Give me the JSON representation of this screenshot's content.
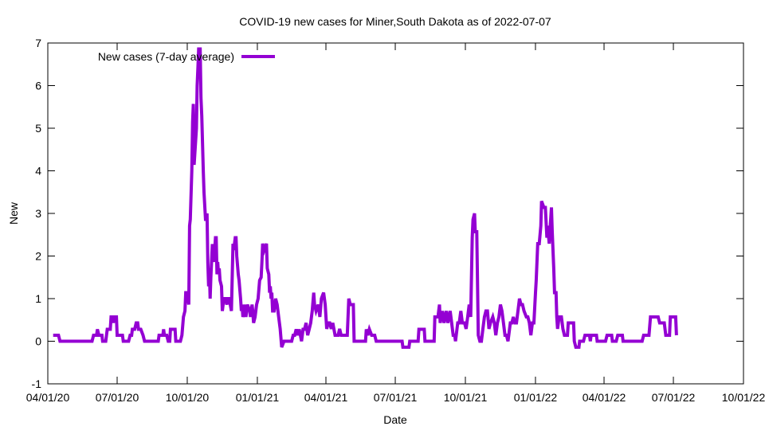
{
  "chart_data": {
    "type": "line",
    "title": "COVID-19 new cases for Miner,South Dakota as of 2022-07-07",
    "xlabel": "Date",
    "ylabel": "New",
    "x_unit": "days since 2020-04-01",
    "xlim": [
      0,
      913
    ],
    "ylim": [
      -1,
      7
    ],
    "yticks": [
      -1,
      0,
      1,
      2,
      3,
      4,
      5,
      6,
      7
    ],
    "xticks": [
      {
        "day": 0,
        "label": "04/01/20"
      },
      {
        "day": 91,
        "label": "07/01/20"
      },
      {
        "day": 183,
        "label": "10/01/20"
      },
      {
        "day": 275,
        "label": "01/01/21"
      },
      {
        "day": 365,
        "label": "04/01/21"
      },
      {
        "day": 456,
        "label": "07/01/21"
      },
      {
        "day": 548,
        "label": "10/01/21"
      },
      {
        "day": 640,
        "label": "01/01/22"
      },
      {
        "day": 730,
        "label": "04/01/22"
      },
      {
        "day": 821,
        "label": "07/01/22"
      },
      {
        "day": 913,
        "label": "10/01/22"
      }
    ],
    "grid": false,
    "legend_position": "top-left",
    "series": [
      {
        "name": "New cases (7-day average)",
        "color": "#9400d3",
        "points": [
          [
            7,
            0.14
          ],
          [
            14,
            0.14
          ],
          [
            16,
            0
          ],
          [
            58,
            0
          ],
          [
            60,
            0.14
          ],
          [
            64,
            0.14
          ],
          [
            65,
            0.28
          ],
          [
            67,
            0.14
          ],
          [
            71,
            0.14
          ],
          [
            72,
            0
          ],
          [
            76,
            0
          ],
          [
            78,
            0.28
          ],
          [
            82,
            0.28
          ],
          [
            83,
            0.57
          ],
          [
            85,
            0.57
          ],
          [
            86,
            0.43
          ],
          [
            87,
            0.57
          ],
          [
            90,
            0.57
          ],
          [
            91,
            0.14
          ],
          [
            98,
            0.14
          ],
          [
            99,
            0
          ],
          [
            106,
            0
          ],
          [
            108,
            0.14
          ],
          [
            110,
            0.14
          ],
          [
            111,
            0.28
          ],
          [
            114,
            0.28
          ],
          [
            116,
            0.43
          ],
          [
            118,
            0.43
          ],
          [
            119,
            0.28
          ],
          [
            122,
            0.28
          ],
          [
            125,
            0.14
          ],
          [
            127,
            0
          ],
          [
            145,
            0
          ],
          [
            146,
            0.14
          ],
          [
            151,
            0.14
          ],
          [
            152,
            0.28
          ],
          [
            153,
            0.14
          ],
          [
            156,
            0.14
          ],
          [
            158,
            0
          ],
          [
            160,
            0
          ],
          [
            161,
            0.28
          ],
          [
            167,
            0.28
          ],
          [
            168,
            0
          ],
          [
            174,
            0
          ],
          [
            176,
            0.14
          ],
          [
            178,
            0.57
          ],
          [
            180,
            0.71
          ],
          [
            181,
            1.14
          ],
          [
            183,
            1.14
          ],
          [
            185,
            0.86
          ],
          [
            186,
            2.71
          ],
          [
            187,
            2.86
          ],
          [
            189,
            4.0
          ],
          [
            190,
            5.14
          ],
          [
            191,
            5.57
          ],
          [
            192,
            4.14
          ],
          [
            195,
            5.0
          ],
          [
            196,
            6.0
          ],
          [
            197,
            6.43
          ],
          [
            198,
            6.86
          ],
          [
            200,
            6.86
          ],
          [
            201,
            5.71
          ],
          [
            202,
            5.29
          ],
          [
            204,
            4.0
          ],
          [
            205,
            3.5
          ],
          [
            207,
            2.86
          ],
          [
            208,
            2.86
          ],
          [
            209,
            3.0
          ],
          [
            210,
            1.86
          ],
          [
            211,
            1.29
          ],
          [
            212,
            1.71
          ],
          [
            213,
            1.0
          ],
          [
            214,
            1.5
          ],
          [
            216,
            2.28
          ],
          [
            218,
            1.86
          ],
          [
            220,
            2.43
          ],
          [
            221,
            2.43
          ],
          [
            222,
            1.57
          ],
          [
            223,
            1.86
          ],
          [
            224,
            1.57
          ],
          [
            225,
            1.71
          ],
          [
            226,
            1.43
          ],
          [
            228,
            1.29
          ],
          [
            229,
            0.71
          ],
          [
            231,
            1.0
          ],
          [
            233,
            1.0
          ],
          [
            235,
            0.86
          ],
          [
            236,
            1.0
          ],
          [
            238,
            1.0
          ],
          [
            241,
            0.71
          ],
          [
            243,
            2.29
          ],
          [
            244,
            2.14
          ],
          [
            246,
            2.43
          ],
          [
            247,
            2.43
          ],
          [
            248,
            2.0
          ],
          [
            250,
            1.57
          ],
          [
            251,
            1.43
          ],
          [
            253,
            1.0
          ],
          [
            254,
            0.71
          ],
          [
            255,
            0.86
          ],
          [
            256,
            0.57
          ],
          [
            258,
            0.71
          ],
          [
            259,
            0.86
          ],
          [
            260,
            0.57
          ],
          [
            262,
            0.86
          ],
          [
            265,
            0.71
          ],
          [
            266,
            0.57
          ],
          [
            268,
            0.86
          ],
          [
            269,
            0.71
          ],
          [
            270,
            0.43
          ],
          [
            272,
            0.57
          ],
          [
            274,
            0.86
          ],
          [
            276,
            1.0
          ],
          [
            278,
            1.43
          ],
          [
            280,
            1.5
          ],
          [
            281,
            1.86
          ],
          [
            282,
            2.29
          ],
          [
            284,
            2.14
          ],
          [
            287,
            2.29
          ],
          [
            288,
            1.71
          ],
          [
            290,
            1.57
          ],
          [
            291,
            1.14
          ],
          [
            292,
            1.29
          ],
          [
            293,
            1.0
          ],
          [
            294,
            1.14
          ],
          [
            295,
            0.71
          ],
          [
            297,
            0.71
          ],
          [
            299,
            1.0
          ],
          [
            301,
            0.86
          ],
          [
            303,
            0.57
          ],
          [
            305,
            0.29
          ],
          [
            307,
            -0.14
          ],
          [
            310,
            0
          ],
          [
            320,
            0
          ],
          [
            322,
            0.14
          ],
          [
            324,
            0.14
          ],
          [
            326,
            0.28
          ],
          [
            328,
            0.14
          ],
          [
            330,
            0.28
          ],
          [
            333,
            0
          ],
          [
            335,
            0.28
          ],
          [
            337,
            0.28
          ],
          [
            339,
            0.43
          ],
          [
            341,
            0.14
          ],
          [
            343,
            0.28
          ],
          [
            345,
            0.43
          ],
          [
            347,
            0.71
          ],
          [
            349,
            1.14
          ],
          [
            350,
            0.86
          ],
          [
            352,
            0.71
          ],
          [
            355,
            0.86
          ],
          [
            357,
            0.57
          ],
          [
            359,
            1.0
          ],
          [
            362,
            1.14
          ],
          [
            364,
            0.86
          ],
          [
            366,
            0.29
          ],
          [
            368,
            0.43
          ],
          [
            370,
            0.43
          ],
          [
            372,
            0.29
          ],
          [
            374,
            0.43
          ],
          [
            377,
            0.14
          ],
          [
            379,
            0.14
          ],
          [
            381,
            0.14
          ],
          [
            383,
            0.29
          ],
          [
            385,
            0.14
          ],
          [
            387,
            0.14
          ],
          [
            393,
            0.14
          ],
          [
            395,
            1.0
          ],
          [
            397,
            0.86
          ],
          [
            401,
            0.86
          ],
          [
            402,
            0
          ],
          [
            417,
            0
          ],
          [
            418,
            0.28
          ],
          [
            420,
            0.14
          ],
          [
            422,
            0.28
          ],
          [
            425,
            0.14
          ],
          [
            429,
            0.14
          ],
          [
            431,
            0
          ],
          [
            465,
            0
          ],
          [
            466,
            -0.14
          ],
          [
            474,
            -0.14
          ],
          [
            475,
            0
          ],
          [
            486,
            0
          ],
          [
            487,
            0.28
          ],
          [
            494,
            0.28
          ],
          [
            495,
            0
          ],
          [
            507,
            0
          ],
          [
            508,
            0.57
          ],
          [
            512,
            0.57
          ],
          [
            514,
            0.86
          ],
          [
            515,
            0.43
          ],
          [
            518,
            0.71
          ],
          [
            520,
            0.43
          ],
          [
            523,
            0.71
          ],
          [
            525,
            0.43
          ],
          [
            528,
            0.71
          ],
          [
            530,
            0.43
          ],
          [
            532,
            0.14
          ],
          [
            534,
            0.14
          ],
          [
            535,
            0
          ],
          [
            538,
            0.43
          ],
          [
            540,
            0.43
          ],
          [
            542,
            0.71
          ],
          [
            544,
            0.43
          ],
          [
            547,
            0.43
          ],
          [
            549,
            0.29
          ],
          [
            551,
            0.57
          ],
          [
            553,
            0.86
          ],
          [
            555,
            0.57
          ],
          [
            557,
            2.43
          ],
          [
            558,
            2.86
          ],
          [
            560,
            3.0
          ],
          [
            561,
            2.57
          ],
          [
            563,
            2.57
          ],
          [
            565,
            0.14
          ],
          [
            567,
            0
          ],
          [
            569,
            0
          ],
          [
            571,
            0.29
          ],
          [
            573,
            0.57
          ],
          [
            575,
            0.71
          ],
          [
            577,
            0.71
          ],
          [
            579,
            0.29
          ],
          [
            581,
            0.43
          ],
          [
            584,
            0.57
          ],
          [
            586,
            0.43
          ],
          [
            588,
            0.14
          ],
          [
            590,
            0.43
          ],
          [
            592,
            0.57
          ],
          [
            594,
            0.86
          ],
          [
            596,
            0.71
          ],
          [
            598,
            0.43
          ],
          [
            600,
            0.14
          ],
          [
            602,
            0.14
          ],
          [
            604,
            0
          ],
          [
            607,
            0.43
          ],
          [
            609,
            0.43
          ],
          [
            611,
            0.57
          ],
          [
            613,
            0.43
          ],
          [
            615,
            0.43
          ],
          [
            617,
            0.71
          ],
          [
            619,
            1.0
          ],
          [
            621,
            0.86
          ],
          [
            623,
            0.86
          ],
          [
            625,
            0.71
          ],
          [
            628,
            0.57
          ],
          [
            630,
            0.57
          ],
          [
            632,
            0.43
          ],
          [
            634,
            0.14
          ],
          [
            636,
            0.43
          ],
          [
            638,
            0.43
          ],
          [
            640,
            1.14
          ],
          [
            641,
            1.43
          ],
          [
            643,
            2.29
          ],
          [
            645,
            2.29
          ],
          [
            647,
            2.71
          ],
          [
            648,
            3.29
          ],
          [
            651,
            3.14
          ],
          [
            653,
            3.14
          ],
          [
            655,
            2.43
          ],
          [
            656,
            2.71
          ],
          [
            658,
            2.29
          ],
          [
            659,
            2.57
          ],
          [
            661,
            3.14
          ],
          [
            662,
            2.57
          ],
          [
            664,
            1.71
          ],
          [
            665,
            1.14
          ],
          [
            667,
            1.14
          ],
          [
            668,
            0.57
          ],
          [
            669,
            0.29
          ],
          [
            671,
            0.57
          ],
          [
            674,
            0.57
          ],
          [
            676,
            0.29
          ],
          [
            678,
            0.14
          ],
          [
            682,
            0.14
          ],
          [
            683,
            0.43
          ],
          [
            690,
            0.43
          ],
          [
            691,
            0
          ],
          [
            693,
            -0.14
          ],
          [
            697,
            -0.14
          ],
          [
            698,
            0
          ],
          [
            703,
            0
          ],
          [
            705,
            0.14
          ],
          [
            711,
            0.14
          ],
          [
            712,
            0
          ],
          [
            713,
            0.14
          ],
          [
            720,
            0.14
          ],
          [
            721,
            0
          ],
          [
            732,
            0
          ],
          [
            734,
            0.14
          ],
          [
            740,
            0.14
          ],
          [
            741,
            0
          ],
          [
            746,
            0
          ],
          [
            748,
            0.14
          ],
          [
            754,
            0.14
          ],
          [
            755,
            0
          ],
          [
            780,
            0
          ],
          [
            782,
            0.14
          ],
          [
            789,
            0.14
          ],
          [
            791,
            0.57
          ],
          [
            801,
            0.57
          ],
          [
            803,
            0.43
          ],
          [
            809,
            0.43
          ],
          [
            811,
            0.14
          ],
          [
            816,
            0.14
          ],
          [
            817,
            0.57
          ],
          [
            824,
            0.57
          ],
          [
            825,
            0.14
          ]
        ]
      }
    ]
  }
}
